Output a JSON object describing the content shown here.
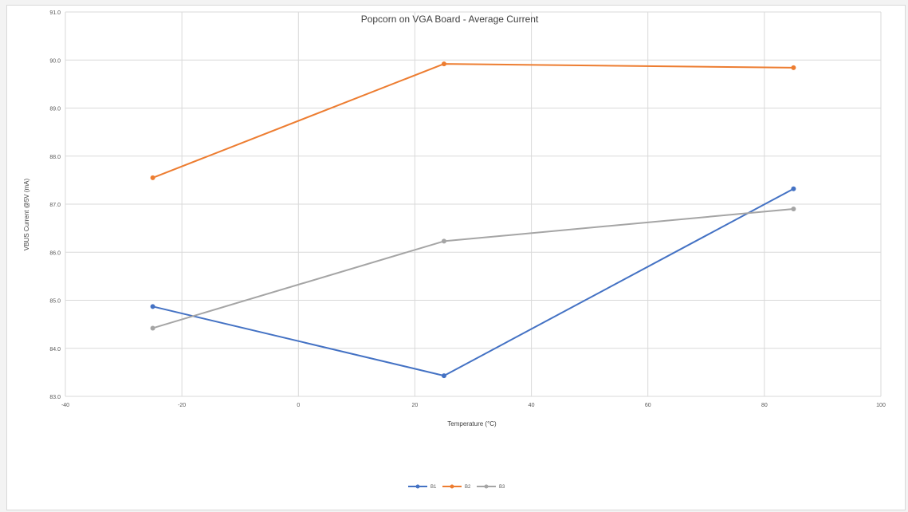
{
  "chart_data": {
    "type": "line",
    "title": "Popcorn on VGA Board - Average Current",
    "xlabel": "Temperature (°C)",
    "ylabel": "VBUS Current @5V (mA)",
    "xlim": [
      -40,
      100
    ],
    "ylim": [
      83.0,
      91.0
    ],
    "x_ticks": [
      -40,
      -20,
      0,
      20,
      40,
      60,
      80,
      100
    ],
    "y_ticks": [
      "83.0",
      "84.0",
      "85.0",
      "86.0",
      "87.0",
      "88.0",
      "89.0",
      "90.0",
      "91.0"
    ],
    "grid": true,
    "legend_position": "bottom",
    "series": [
      {
        "name": "B1",
        "color": "#4472c4",
        "x": [
          -25,
          25,
          85
        ],
        "y": [
          84.87,
          83.43,
          87.32
        ]
      },
      {
        "name": "B2",
        "color": "#ed7d31",
        "x": [
          -25,
          25,
          85
        ],
        "y": [
          87.55,
          89.92,
          89.84
        ]
      },
      {
        "name": "B3",
        "color": "#a5a5a5",
        "x": [
          -25,
          25,
          85
        ],
        "y": [
          84.42,
          86.23,
          86.9
        ]
      }
    ]
  }
}
